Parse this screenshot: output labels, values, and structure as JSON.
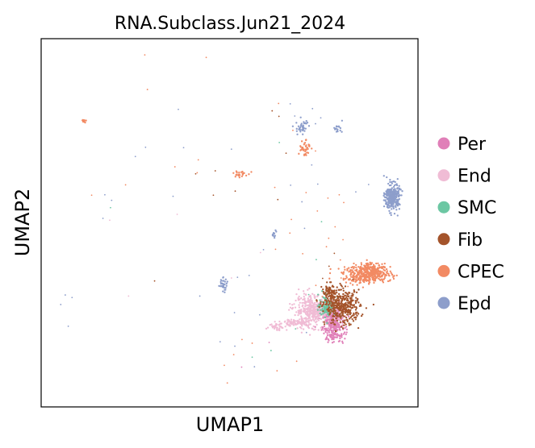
{
  "chart_data": {
    "type": "scatter",
    "title": "RNA.Subclass.Jun21_2024",
    "xlabel": "UMAP1",
    "ylabel": "UMAP2",
    "xlim": [
      0,
      100
    ],
    "ylim": [
      0,
      100
    ],
    "grid": false,
    "ticks": false,
    "legend_position": "right",
    "series": [
      {
        "name": "Per",
        "color": "#e07fb8",
        "clusters": [
          {
            "cx": 77.6,
            "cy": 22.0,
            "sx": 1.5,
            "sy": 2.2,
            "n": 260
          },
          {
            "cx": 77.3,
            "cy": 25.5,
            "sx": 1.2,
            "sy": 1.0,
            "n": 80
          }
        ],
        "scatter": [
          [
            60.5,
            17.5
          ],
          [
            53.2,
            10.8
          ],
          [
            72.1,
            27.2
          ]
        ]
      },
      {
        "name": "End",
        "color": "#f0bcd5",
        "clusters": [
          {
            "cx": 72.2,
            "cy": 26.2,
            "sx": 2.6,
            "sy": 2.0,
            "n": 420
          },
          {
            "cx": 67.8,
            "cy": 22.8,
            "sx": 2.4,
            "sy": 0.45,
            "n": 90
          },
          {
            "cx": 62.8,
            "cy": 21.8,
            "sx": 1.2,
            "sy": 0.5,
            "n": 35
          }
        ],
        "scatter": [
          [
            23.2,
            30.1
          ],
          [
            18.2,
            50.7
          ],
          [
            36.1,
            52.3
          ],
          [
            58.2,
            41.9
          ],
          [
            50.5,
            35.0
          ]
        ]
      },
      {
        "name": "SMC",
        "color": "#6cc7a3",
        "clusters": [
          {
            "cx": 75.8,
            "cy": 27.5,
            "sx": 1.1,
            "sy": 1.4,
            "n": 120
          }
        ],
        "scatter": [
          [
            18.4,
            54.1
          ],
          [
            61.0,
            15.3
          ],
          [
            74.4,
            50.3
          ],
          [
            56.0,
            13.5
          ],
          [
            63.2,
            71.8
          ],
          [
            71.0,
            30.5
          ],
          [
            73.0,
            40.0
          ],
          [
            67.5,
            21.2
          ]
        ]
      },
      {
        "name": "Fib",
        "color": "#a4542b",
        "clusters": [
          {
            "cx": 80.0,
            "cy": 27.0,
            "sx": 2.3,
            "sy": 2.3,
            "n": 380
          },
          {
            "cx": 76.6,
            "cy": 30.5,
            "sx": 1.0,
            "sy": 1.4,
            "n": 90
          }
        ],
        "scatter": [
          [
            46.2,
            64.1
          ],
          [
            41.0,
            63.3
          ],
          [
            51.5,
            58.6
          ],
          [
            61.3,
            80.4
          ],
          [
            63.1,
            78.9
          ],
          [
            76.4,
            38.2
          ],
          [
            74.7,
            34.9
          ],
          [
            77.8,
            41.7
          ],
          [
            45.7,
            57.5
          ],
          [
            30.1,
            34.2
          ],
          [
            65.0,
            68.9
          ],
          [
            62.8,
            56.3
          ]
        ]
      },
      {
        "name": "CPEC",
        "color": "#f28a63",
        "clusters": [
          {
            "cx": 86.5,
            "cy": 36.0,
            "sx": 3.2,
            "sy": 1.2,
            "n": 380
          },
          {
            "cx": 88.0,
            "cy": 37.5,
            "sx": 1.4,
            "sy": 1.0,
            "n": 90
          },
          {
            "cx": 69.8,
            "cy": 70.5,
            "sx": 0.8,
            "sy": 1.3,
            "n": 40
          },
          {
            "cx": 52.8,
            "cy": 63.2,
            "sx": 0.9,
            "sy": 0.5,
            "n": 25
          },
          {
            "cx": 11.1,
            "cy": 77.6,
            "sx": 0.4,
            "sy": 0.3,
            "n": 12
          }
        ],
        "scatter": [
          [
            27.5,
            95.6
          ],
          [
            43.8,
            94.9
          ],
          [
            28.2,
            86.2
          ],
          [
            41.4,
            63.6
          ],
          [
            41.7,
            67.1
          ],
          [
            62.0,
            59.6
          ],
          [
            66.4,
            50.9
          ],
          [
            70.3,
            58.2
          ],
          [
            66.0,
            47.2
          ],
          [
            73.3,
            53.2
          ],
          [
            76.3,
            45.8
          ],
          [
            80.1,
            45.4
          ],
          [
            76.1,
            56.7
          ],
          [
            79.1,
            57.6
          ],
          [
            53.3,
            18.3
          ],
          [
            48.6,
            11.3
          ],
          [
            51.1,
            14.2
          ],
          [
            56.0,
            17.3
          ],
          [
            49.4,
            6.5
          ],
          [
            63.0,
            82.4
          ],
          [
            66.8,
            75.1
          ],
          [
            70.2,
            72.5
          ],
          [
            72.8,
            69.5
          ],
          [
            80.3,
            55.5
          ],
          [
            79.6,
            35.0
          ],
          [
            81.4,
            32.7
          ],
          [
            79.4,
            39.9
          ],
          [
            75.7,
            43.5
          ],
          [
            74.6,
            30.0
          ],
          [
            72.9,
            33.0
          ],
          [
            78.0,
            48.9
          ],
          [
            69.4,
            41.6
          ],
          [
            35.5,
            65.2
          ],
          [
            22.4,
            60.3
          ],
          [
            13.4,
            57.5
          ],
          [
            62.6,
            9.8
          ],
          [
            67.8,
            12.4
          ],
          [
            62.2,
            42.8
          ]
        ]
      },
      {
        "name": "Epd",
        "color": "#8d9ecb",
        "clusters": [
          {
            "cx": 93.2,
            "cy": 57.0,
            "sx": 0.95,
            "sy": 1.8,
            "n": 300
          },
          {
            "cx": 48.2,
            "cy": 33.2,
            "sx": 0.6,
            "sy": 0.9,
            "n": 35
          },
          {
            "cx": 69.2,
            "cy": 75.8,
            "sx": 0.8,
            "sy": 1.1,
            "n": 40
          },
          {
            "cx": 78.7,
            "cy": 75.6,
            "sx": 0.6,
            "sy": 0.5,
            "n": 18
          },
          {
            "cx": 61.9,
            "cy": 47.1,
            "sx": 0.4,
            "sy": 0.7,
            "n": 12
          }
        ],
        "scatter": [
          [
            18.7,
            56.1
          ],
          [
            16.4,
            51.2
          ],
          [
            5.2,
            27.8
          ],
          [
            6.4,
            30.4
          ],
          [
            8.2,
            29.7
          ],
          [
            52.1,
            35.2
          ],
          [
            55.2,
            35.7
          ],
          [
            42.1,
            30.1
          ],
          [
            51.3,
            25.6
          ],
          [
            58.0,
            25.0
          ],
          [
            66.1,
            82.3
          ],
          [
            67.3,
            79.0
          ],
          [
            72.0,
            81.0
          ],
          [
            74.2,
            78.5
          ],
          [
            37.8,
            70.4
          ],
          [
            36.4,
            80.8
          ],
          [
            50.5,
            70.0
          ],
          [
            72.8,
            76.9
          ],
          [
            47.5,
            17.7
          ],
          [
            51.4,
            16.5
          ],
          [
            71.8,
            65.7
          ],
          [
            73.4,
            60.5
          ],
          [
            69.9,
            48.5
          ],
          [
            69.2,
            55.7
          ],
          [
            66.2,
            60.2
          ],
          [
            7.2,
            21.9
          ],
          [
            59.0,
            42.7
          ],
          [
            16.9,
            57.6
          ],
          [
            27.7,
            70.5
          ],
          [
            25.0,
            68.0
          ],
          [
            83.5,
            58.4
          ],
          [
            86.9,
            60.4
          ],
          [
            70.4,
            20.2
          ],
          [
            56.6,
            10.9
          ],
          [
            35.0,
            57.2
          ]
        ]
      }
    ]
  }
}
